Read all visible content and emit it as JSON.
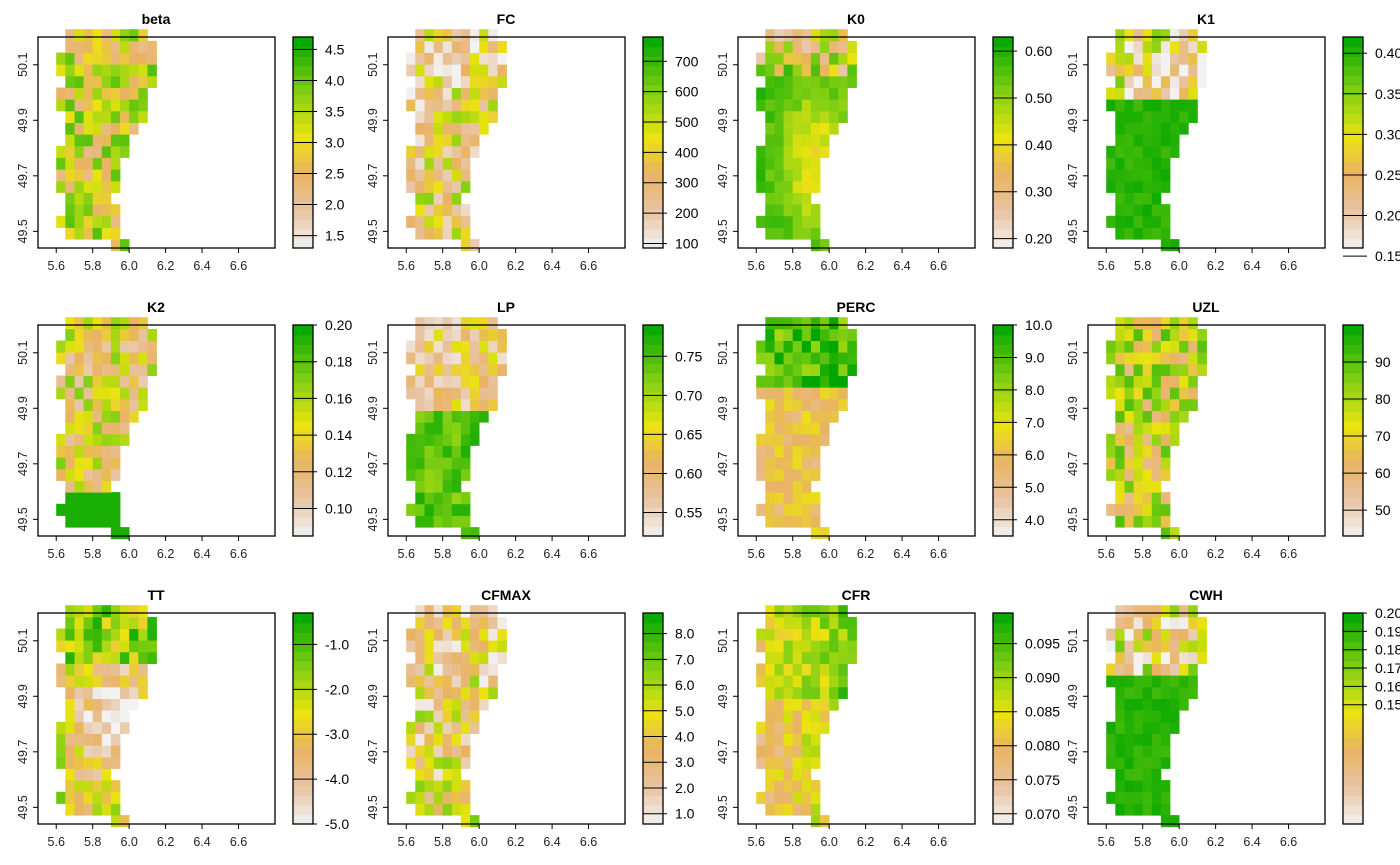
{
  "palette": {
    "low": "#f2f2f2",
    "mid": "#ebe30f",
    "high": "#00a600"
  },
  "x_ticks": [
    "5.6",
    "5.8",
    "6.0",
    "6.2",
    "6.4",
    "6.6"
  ],
  "y_ticks": [
    "50.1",
    "49.9",
    "49.7",
    "49.5"
  ],
  "chart_data": [
    {
      "type": "heatmap",
      "title": "beta",
      "xlim": [
        5.5,
        6.8
      ],
      "ylim": [
        49.44,
        50.2
      ],
      "legend_range": [
        1.3,
        4.7
      ],
      "legend_ticks": [
        "4.5",
        "4.0",
        "3.5",
        "3.0",
        "2.5",
        "2.0",
        "1.5"
      ],
      "legend_values": [
        4.5,
        4.0,
        3.5,
        3.0,
        2.5,
        2.0,
        1.5
      ],
      "pattern": "mixed",
      "seed": 3
    },
    {
      "type": "heatmap",
      "title": "FC",
      "xlim": [
        5.5,
        6.8
      ],
      "ylim": [
        49.44,
        50.2
      ],
      "legend_range": [
        85,
        780
      ],
      "legend_ticks": [
        "700",
        "600",
        "500",
        "400",
        "300",
        "200",
        "100"
      ],
      "legend_values": [
        700,
        600,
        500,
        400,
        300,
        200,
        100
      ],
      "pattern": "mixed_low",
      "seed": 7
    },
    {
      "type": "heatmap",
      "title": "K0",
      "xlim": [
        5.5,
        6.8
      ],
      "ylim": [
        49.44,
        50.2
      ],
      "legend_range": [
        0.18,
        0.63
      ],
      "legend_ticks": [
        "0.60",
        "0.50",
        "0.40",
        "0.30",
        "0.20"
      ],
      "legend_values": [
        0.6,
        0.5,
        0.4,
        0.3,
        0.2
      ],
      "pattern": "high_center_yellow",
      "seed": 11
    },
    {
      "type": "heatmap",
      "title": "K1",
      "xlim": [
        5.5,
        6.8
      ],
      "ylim": [
        49.44,
        50.2
      ],
      "legend_range": [
        0.16,
        0.42
      ],
      "legend_ticks": [
        "0.40",
        "0.35",
        "0.30",
        "0.25",
        "0.20",
        "0.15"
      ],
      "legend_values": [
        0.4,
        0.35,
        0.3,
        0.25,
        0.2,
        0.15
      ],
      "pattern": "high_north_low",
      "seed": 13
    },
    {
      "type": "heatmap",
      "title": "K2",
      "xlim": [
        5.5,
        6.8
      ],
      "ylim": [
        49.44,
        50.2
      ],
      "legend_range": [
        0.085,
        0.2
      ],
      "legend_ticks": [
        "0.20",
        "0.18",
        "0.16",
        "0.14",
        "0.12",
        "0.10"
      ],
      "legend_values": [
        0.2,
        0.18,
        0.16,
        0.14,
        0.12,
        0.1
      ],
      "pattern": "mixed_south_high",
      "seed": 17
    },
    {
      "type": "heatmap",
      "title": "LP",
      "xlim": [
        5.5,
        6.8
      ],
      "ylim": [
        49.44,
        50.2
      ],
      "legend_range": [
        0.52,
        0.79
      ],
      "legend_ticks": [
        "0.75",
        "0.70",
        "0.65",
        "0.60",
        "0.55"
      ],
      "legend_values": [
        0.75,
        0.7,
        0.65,
        0.6,
        0.55
      ],
      "pattern": "north_low_south_high",
      "seed": 19
    },
    {
      "type": "heatmap",
      "title": "PERC",
      "xlim": [
        5.5,
        6.8
      ],
      "ylim": [
        49.44,
        50.2
      ],
      "legend_range": [
        3.5,
        10.0
      ],
      "legend_ticks": [
        "10.0",
        "9.0",
        "8.0",
        "7.0",
        "6.0",
        "5.0",
        "4.0"
      ],
      "legend_values": [
        10,
        9,
        8,
        7,
        6,
        5,
        4
      ],
      "pattern": "north_high_south_mid",
      "seed": 23
    },
    {
      "type": "heatmap",
      "title": "UZL",
      "xlim": [
        5.5,
        6.8
      ],
      "ylim": [
        49.44,
        50.2
      ],
      "legend_range": [
        43,
        100
      ],
      "legend_ticks": [
        "90",
        "80",
        "70",
        "60",
        "50"
      ],
      "legend_values": [
        90,
        80,
        70,
        60,
        50
      ],
      "pattern": "mixed",
      "seed": 29
    },
    {
      "type": "heatmap",
      "title": "TT",
      "xlim": [
        5.5,
        6.8
      ],
      "ylim": [
        49.44,
        50.2
      ],
      "legend_range": [
        -5.0,
        -0.3
      ],
      "legend_ticks": [
        "-1.0",
        "-2.0",
        "-3.0",
        "-4.0",
        "-5.0"
      ],
      "legend_values": [
        -1,
        -2,
        -3,
        -4,
        -5
      ],
      "pattern": "center_low",
      "seed": 31
    },
    {
      "type": "heatmap",
      "title": "CFMAX",
      "xlim": [
        5.5,
        6.8
      ],
      "ylim": [
        49.44,
        50.2
      ],
      "legend_range": [
        0.6,
        8.8
      ],
      "legend_ticks": [
        "8.0",
        "7.0",
        "6.0",
        "5.0",
        "4.0",
        "3.0",
        "2.0",
        "1.0"
      ],
      "legend_values": [
        8,
        7,
        6,
        5,
        4,
        3,
        2,
        1
      ],
      "pattern": "mixed_low",
      "seed": 37
    },
    {
      "type": "heatmap",
      "title": "CFR",
      "xlim": [
        5.5,
        6.8
      ],
      "ylim": [
        49.44,
        50.2
      ],
      "legend_range": [
        0.0685,
        0.0995
      ],
      "legend_ticks": [
        "0.095",
        "0.090",
        "0.085",
        "0.080",
        "0.075",
        "0.070"
      ],
      "legend_values": [
        0.095,
        0.09,
        0.085,
        0.08,
        0.075,
        0.07
      ],
      "pattern": "west_low",
      "seed": 41
    },
    {
      "type": "heatmap",
      "title": "CWH",
      "xlim": [
        5.5,
        6.8
      ],
      "ylim": [
        49.44,
        50.2
      ],
      "legend_range": [
        0.085,
        0.2
      ],
      "legend_ticks": [
        "0.20",
        "0.19",
        "0.18",
        "0.17",
        "0.16",
        "0.15"
      ],
      "legend_values": [
        0.2,
        0.19,
        0.18,
        0.17,
        0.16,
        0.15
      ],
      "pattern": "high_north_low",
      "seed": 43
    }
  ]
}
